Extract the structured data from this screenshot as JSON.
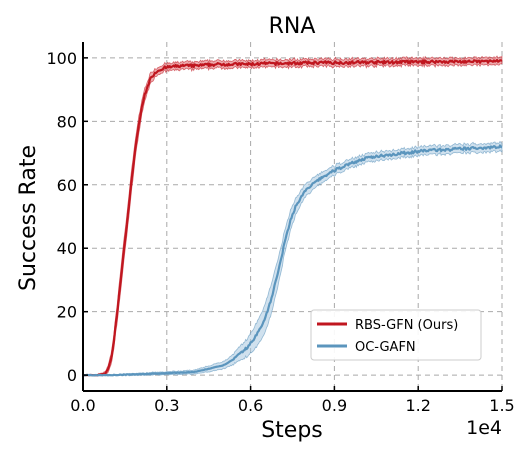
{
  "chart_data": {
    "type": "line",
    "title": "RNA",
    "xlabel": "Steps",
    "ylabel": "Success Rate",
    "x_offset_label": "1e4",
    "xlim": [
      0,
      1.5
    ],
    "ylim": [
      -5,
      105
    ],
    "xticks": [
      0.0,
      0.3,
      0.6,
      0.9,
      1.2,
      1.5
    ],
    "xtick_labels": [
      "0.0",
      "0.3",
      "0.6",
      "0.9",
      "1.2",
      "1.5"
    ],
    "yticks": [
      0,
      20,
      40,
      60,
      80,
      100
    ],
    "ytick_labels": [
      "0",
      "20",
      "40",
      "60",
      "80",
      "100"
    ],
    "grid": true,
    "legend_position": "lower-right",
    "series": [
      {
        "name": "RBS-GFN (Ours)",
        "color": "#c0161f",
        "band_color": "#e06a70",
        "x": [
          0.0,
          0.05,
          0.08,
          0.09,
          0.1,
          0.11,
          0.12,
          0.13,
          0.14,
          0.15,
          0.16,
          0.17,
          0.18,
          0.19,
          0.2,
          0.21,
          0.22,
          0.23,
          0.24,
          0.25,
          0.26,
          0.27,
          0.28,
          0.29,
          0.3,
          0.32,
          0.35,
          0.4,
          0.45,
          0.5,
          0.55,
          0.6,
          0.65,
          0.7,
          0.75,
          0.8,
          0.85,
          0.9,
          0.95,
          1.0,
          1.05,
          1.1,
          1.15,
          1.2,
          1.25,
          1.3,
          1.35,
          1.4,
          1.45,
          1.5
        ],
        "values": [
          0,
          0,
          0.5,
          2,
          5,
          10,
          18,
          26,
          34,
          42,
          50,
          58,
          66,
          73,
          79,
          84,
          88,
          91,
          93,
          94.5,
          95.5,
          96,
          96.5,
          96.8,
          97,
          97.2,
          97.5,
          97.5,
          97.8,
          98,
          98,
          98,
          98.2,
          98.2,
          98.3,
          98.4,
          98.5,
          98.5,
          98.5,
          98.6,
          98.6,
          98.6,
          98.7,
          98.7,
          98.8,
          98.8,
          98.8,
          98.8,
          98.9,
          98.9
        ],
        "band": [
          0,
          0,
          0.5,
          1.0,
          1.5,
          2,
          2.5,
          3,
          3,
          3,
          3,
          3,
          3,
          2.5,
          2.5,
          2,
          2,
          1.5,
          1.5,
          1.2,
          1,
          1,
          1,
          1,
          1,
          1,
          1,
          1,
          1,
          1,
          1,
          1,
          1,
          1,
          1,
          1,
          1,
          1,
          1,
          1,
          1,
          1,
          1,
          1,
          1,
          1,
          1,
          1,
          1,
          1
        ]
      },
      {
        "name": "OC-GAFN",
        "color": "#5b95bd",
        "band_color": "#a9c9e0",
        "x": [
          0.0,
          0.1,
          0.2,
          0.3,
          0.35,
          0.4,
          0.45,
          0.5,
          0.52,
          0.54,
          0.56,
          0.58,
          0.6,
          0.62,
          0.64,
          0.66,
          0.68,
          0.7,
          0.72,
          0.74,
          0.76,
          0.78,
          0.8,
          0.85,
          0.9,
          0.95,
          1.0,
          1.05,
          1.1,
          1.15,
          1.2,
          1.25,
          1.3,
          1.35,
          1.4,
          1.45,
          1.5
        ],
        "values": [
          0,
          0,
          0.3,
          0.6,
          0.8,
          1,
          2,
          3,
          4,
          5,
          6.5,
          8,
          10,
          12.5,
          15.5,
          20,
          26,
          33,
          41,
          48,
          53,
          56,
          58.5,
          62,
          64.5,
          66.5,
          68,
          69,
          69.5,
          70,
          70.5,
          71,
          71,
          71.3,
          71.5,
          71.8,
          72
        ],
        "band": [
          0,
          0,
          0.2,
          0.3,
          0.4,
          0.5,
          0.8,
          1,
          1.2,
          1.5,
          2,
          2.5,
          3,
          3.5,
          4,
          4.5,
          4.5,
          4,
          3.5,
          3,
          2.5,
          2,
          1.8,
          1.5,
          1.3,
          1.2,
          1.2,
          1.2,
          1.2,
          1.2,
          1.2,
          1.2,
          1.2,
          1.2,
          1.2,
          1.2,
          1.2
        ]
      }
    ]
  }
}
